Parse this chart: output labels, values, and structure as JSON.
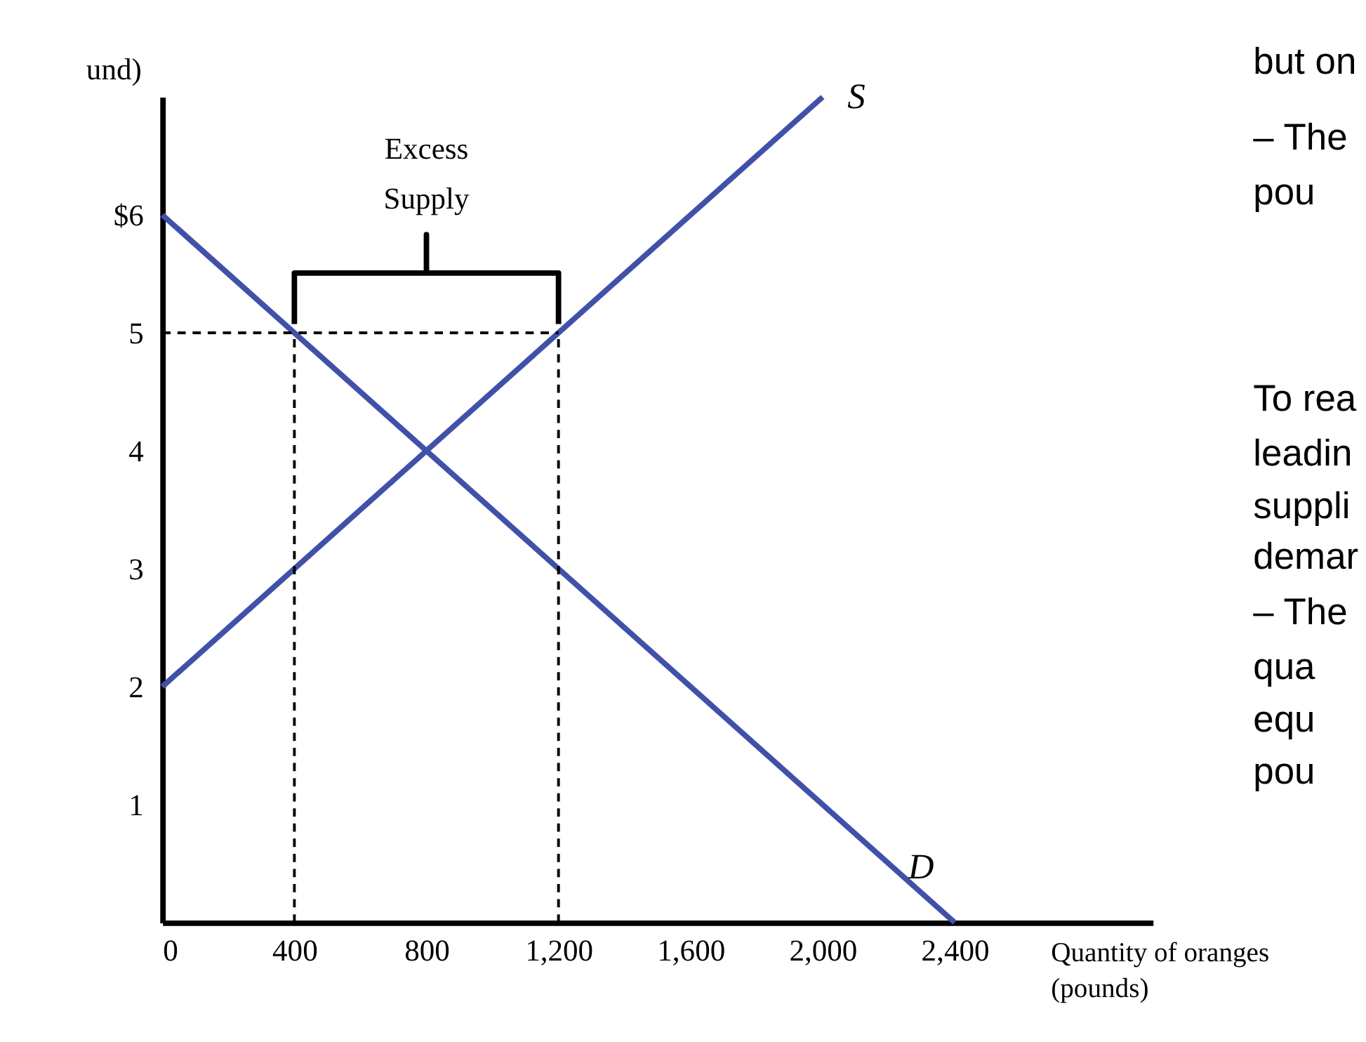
{
  "chart_data": {
    "type": "line",
    "ylabel": "und)",
    "xlabel": "Quantity of oranges\n(pounds)",
    "series": [
      {
        "name": "S",
        "color": "#3f51a8",
        "x": [
          0,
          2000
        ],
        "values": [
          2,
          7
        ]
      },
      {
        "name": "D",
        "color": "#3f51a8",
        "x": [
          0,
          2400
        ],
        "values": [
          6,
          0
        ]
      },
      {
        "color": "#000000",
        "x": [
          0,
          1200
        ],
        "values": [
          5,
          5
        ],
        "line_style": "dashed"
      },
      {
        "color": "#000000",
        "x": [
          400,
          400
        ],
        "values": [
          0,
          5
        ],
        "line_style": "dashed"
      },
      {
        "color": "#000000",
        "x": [
          1200,
          1200
        ],
        "values": [
          0,
          5
        ],
        "line_style": "dashed"
      }
    ],
    "xlim": [
      0,
      3000
    ],
    "ylim": [
      0,
      7
    ],
    "xticks": [
      0,
      400,
      800,
      {
        "value": 1200,
        "label": "1,200"
      },
      {
        "value": 1600,
        "label": "1,600"
      },
      {
        "value": 2000,
        "label": "2,000"
      },
      {
        "value": 2400,
        "label": "2,400"
      }
    ],
    "yticks": [
      1,
      2,
      3,
      4,
      5,
      {
        "value": 6,
        "label": "$6"
      }
    ],
    "annotations": [
      "Excess\nSupply",
      "but on",
      "–  The",
      "pou",
      "To rea",
      "leadin",
      "suppli",
      "demar",
      "–  The",
      "qua",
      "equ",
      "pou"
    ],
    "grid": false,
    "legend": false,
    "marker": "none",
    "line_style": "solid"
  }
}
